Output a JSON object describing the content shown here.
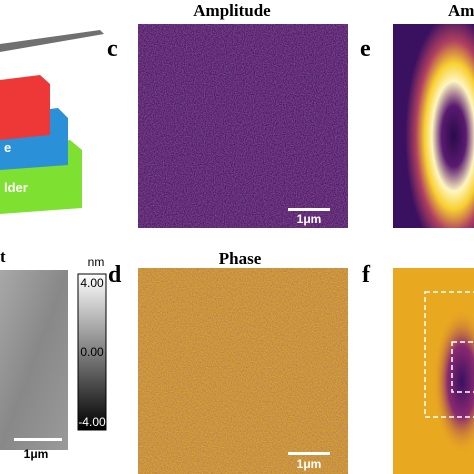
{
  "schematic": {
    "labels": [
      "e",
      "lder"
    ]
  },
  "panel_b": {
    "label": "t",
    "scale_bar": "1μm",
    "colorbar": {
      "unit": "nm",
      "ticks": [
        "4.00",
        "0.00",
        "-4.00"
      ]
    }
  },
  "panel_c": {
    "label": "c",
    "title": "Amplitude",
    "scale_bar": "1μm"
  },
  "panel_d": {
    "label": "d",
    "title": "Phase",
    "scale_bar": "1μm"
  },
  "panel_e": {
    "label": "e",
    "title": "Am"
  },
  "panel_f": {
    "label": "f"
  }
}
